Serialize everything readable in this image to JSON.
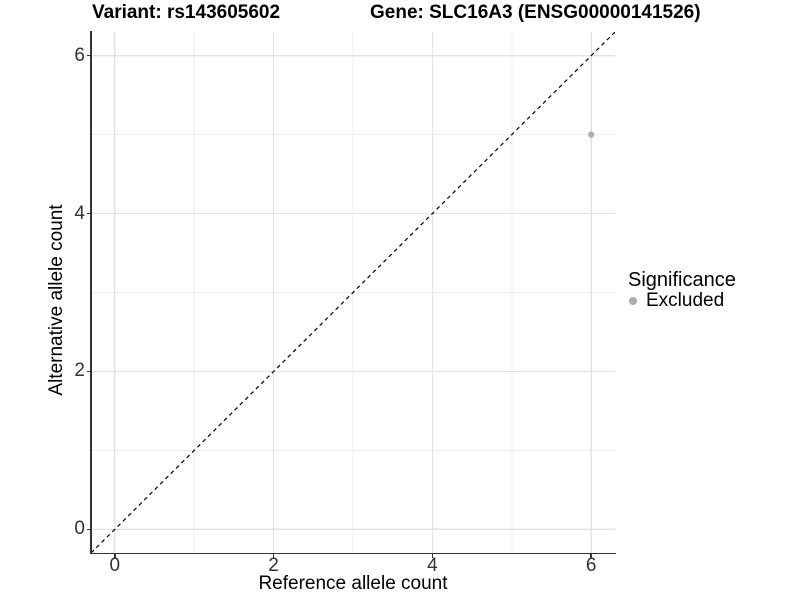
{
  "figure": {
    "title_left": "Variant: rs143605602",
    "title_right": "Gene: SLC16A3 (ENSG00000141526)"
  },
  "chart_data": {
    "type": "scatter",
    "title": "Variant: rs143605602 — Gene: SLC16A3 (ENSG00000141526)",
    "xlabel": "Reference allele count",
    "ylabel": "Alternative allele count",
    "xlim": [
      -0.3,
      6.3
    ],
    "ylim": [
      -0.3,
      6.3
    ],
    "x_ticks": [
      0,
      2,
      4,
      6
    ],
    "y_ticks": [
      0,
      2,
      4,
      6
    ],
    "grid": {
      "major": [
        0,
        2,
        4,
        6
      ],
      "minor": [
        1,
        3,
        5
      ],
      "major_color": "#e3e3e3",
      "minor_color": "#ececec"
    },
    "reference_line": {
      "type": "identity y=x",
      "style": "dashed",
      "color": "#000000",
      "from": [
        -0.3,
        -0.3
      ],
      "to": [
        6.3,
        6.3
      ]
    },
    "series": [
      {
        "name": "Excluded",
        "color": "#adadad",
        "points": [
          [
            6,
            5
          ]
        ]
      }
    ],
    "legend": {
      "title": "Significance",
      "position": "right",
      "entries": [
        "Excluded"
      ]
    }
  },
  "colors": {
    "axis": "#333333",
    "tick_text": "#333333",
    "point": "#adadad"
  }
}
